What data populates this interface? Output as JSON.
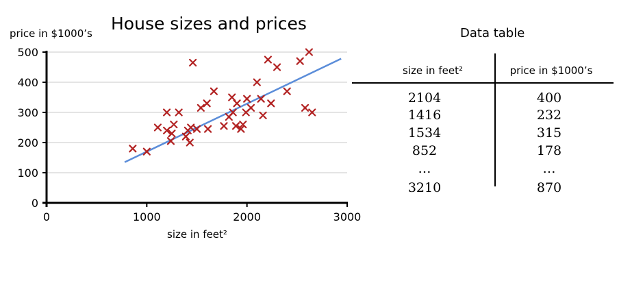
{
  "chart_data": {
    "type": "scatter",
    "title": "House sizes and prices",
    "xlabel": "size in feet²",
    "ylabel": "price in $1000’s",
    "xlim": [
      0,
      3000
    ],
    "ylim": [
      0,
      500
    ],
    "x_ticks": [
      "0",
      "1000",
      "2000",
      "3000"
    ],
    "y_ticks": [
      "0",
      "100",
      "200",
      "300",
      "400",
      "500"
    ],
    "grid": "horizontal",
    "marker": "x",
    "colors": {
      "points": "#b22222",
      "fit_line": "#5b8dd9",
      "grid": "#c8c8c8"
    },
    "points": [
      {
        "x": 860,
        "y": 180
      },
      {
        "x": 1000,
        "y": 170
      },
      {
        "x": 1110,
        "y": 250
      },
      {
        "x": 1200,
        "y": 300
      },
      {
        "x": 1200,
        "y": 240
      },
      {
        "x": 1240,
        "y": 205
      },
      {
        "x": 1250,
        "y": 230
      },
      {
        "x": 1270,
        "y": 260
      },
      {
        "x": 1320,
        "y": 300
      },
      {
        "x": 1390,
        "y": 220
      },
      {
        "x": 1410,
        "y": 240
      },
      {
        "x": 1430,
        "y": 200
      },
      {
        "x": 1440,
        "y": 250
      },
      {
        "x": 1460,
        "y": 465
      },
      {
        "x": 1500,
        "y": 245
      },
      {
        "x": 1540,
        "y": 315
      },
      {
        "x": 1600,
        "y": 330
      },
      {
        "x": 1610,
        "y": 245
      },
      {
        "x": 1670,
        "y": 370
      },
      {
        "x": 1770,
        "y": 255
      },
      {
        "x": 1820,
        "y": 285
      },
      {
        "x": 1850,
        "y": 350
      },
      {
        "x": 1860,
        "y": 300
      },
      {
        "x": 1890,
        "y": 255
      },
      {
        "x": 1900,
        "y": 330
      },
      {
        "x": 1940,
        "y": 245
      },
      {
        "x": 1960,
        "y": 260
      },
      {
        "x": 1990,
        "y": 300
      },
      {
        "x": 2000,
        "y": 345
      },
      {
        "x": 2040,
        "y": 315
      },
      {
        "x": 2100,
        "y": 400
      },
      {
        "x": 2140,
        "y": 345
      },
      {
        "x": 2160,
        "y": 290
      },
      {
        "x": 2210,
        "y": 475
      },
      {
        "x": 2240,
        "y": 330
      },
      {
        "x": 2300,
        "y": 450
      },
      {
        "x": 2400,
        "y": 370
      },
      {
        "x": 2530,
        "y": 470
      },
      {
        "x": 2580,
        "y": 315
      },
      {
        "x": 2620,
        "y": 500
      },
      {
        "x": 2650,
        "y": 300
      }
    ],
    "fit_line": {
      "x": [
        780,
        2940
      ],
      "y": [
        135,
        478
      ]
    }
  },
  "table": {
    "title": "Data table",
    "headers": [
      "size in feet²",
      "price in $1000’s"
    ],
    "size_column": [
      "2104",
      "1416",
      "1534",
      "852",
      "…",
      "3210"
    ],
    "price_column": [
      "400",
      "232",
      "315",
      "178",
      "…",
      "870"
    ]
  }
}
